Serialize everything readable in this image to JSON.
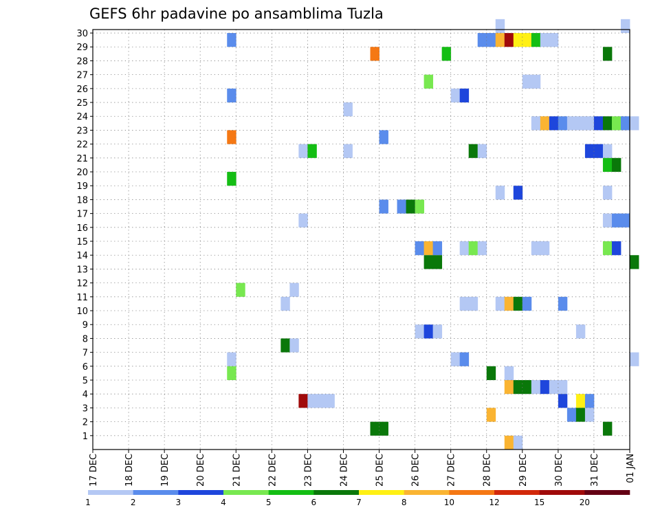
{
  "chart_data": {
    "type": "heatmap",
    "title": "GEFS 6hr padavine po ansamblima Tuzla",
    "xlabel": "",
    "ylabel": "",
    "x_tick_labels": [
      "17 DEC",
      "18 DEC",
      "19 DEC",
      "20 DEC",
      "21 DEC",
      "22 DEC",
      "23 DEC",
      "24 DEC",
      "25 DEC",
      "26 DEC",
      "27 DEC",
      "28 DEC",
      "29 DEC",
      "30 DEC",
      "31 DEC",
      "01 JAN"
    ],
    "y_tick_labels": [
      "1",
      "2",
      "3",
      "4",
      "5",
      "6",
      "7",
      "8",
      "9",
      "10",
      "11",
      "12",
      "13",
      "14",
      "15",
      "16",
      "17",
      "18",
      "19",
      "20",
      "21",
      "22",
      "23",
      "24",
      "25",
      "26",
      "27",
      "28",
      "29",
      "30"
    ],
    "xlim_days": [
      0,
      15
    ],
    "ylim_members": [
      0,
      30
    ],
    "grid": "dotted",
    "colorbar": {
      "levels": [
        "1",
        "2",
        "3",
        "4",
        "5",
        "6",
        "7",
        "8",
        "10",
        "12",
        "15",
        "20"
      ],
      "colors": [
        "#b4c8f4",
        "#5a8cec",
        "#1e46dc",
        "#78e850",
        "#14be14",
        "#0a780a",
        "#fff014",
        "#fab432",
        "#f57814",
        "#d2280a",
        "#a00a0a",
        "#640014"
      ]
    },
    "cells_note": "each cell: member (1-30 row), start_day (days after 17 DEC 00Z), class index into colorbar colors",
    "cells": [
      [
        30,
        11.25,
        0
      ],
      [
        30,
        14.75,
        0
      ],
      [
        29,
        3.75,
        1
      ],
      [
        29,
        10.75,
        1
      ],
      [
        29,
        11.0,
        1
      ],
      [
        29,
        11.25,
        7
      ],
      [
        29,
        11.5,
        10
      ],
      [
        29,
        11.75,
        6
      ],
      [
        29,
        12.0,
        6
      ],
      [
        29,
        12.25,
        4
      ],
      [
        29,
        12.5,
        0
      ],
      [
        29,
        12.75,
        0
      ],
      [
        28,
        7.75,
        8
      ],
      [
        28,
        9.75,
        4
      ],
      [
        28,
        14.25,
        5
      ],
      [
        26,
        9.25,
        3
      ],
      [
        26,
        12.0,
        0
      ],
      [
        26,
        12.25,
        0
      ],
      [
        25,
        3.75,
        1
      ],
      [
        25,
        10.0,
        0
      ],
      [
        25,
        10.25,
        2
      ],
      [
        24,
        7.0,
        0
      ],
      [
        23,
        12.25,
        0
      ],
      [
        23,
        12.5,
        7
      ],
      [
        23,
        12.75,
        2
      ],
      [
        23,
        13.0,
        1
      ],
      [
        23,
        13.25,
        0
      ],
      [
        23,
        13.5,
        0
      ],
      [
        23,
        13.75,
        0
      ],
      [
        23,
        14.0,
        2
      ],
      [
        23,
        14.25,
        5
      ],
      [
        23,
        14.5,
        3
      ],
      [
        23,
        14.75,
        1
      ],
      [
        23,
        15.0,
        0
      ],
      [
        22,
        3.75,
        8
      ],
      [
        22,
        8.0,
        1
      ],
      [
        21,
        5.75,
        0
      ],
      [
        21,
        6.0,
        4
      ],
      [
        21,
        7.0,
        0
      ],
      [
        21,
        10.5,
        5
      ],
      [
        21,
        10.75,
        0
      ],
      [
        21,
        13.75,
        2
      ],
      [
        21,
        14.0,
        2
      ],
      [
        21,
        14.25,
        0
      ],
      [
        20,
        14.25,
        4
      ],
      [
        20,
        14.5,
        5
      ],
      [
        19,
        3.75,
        4
      ],
      [
        18,
        11.25,
        0
      ],
      [
        18,
        11.75,
        2
      ],
      [
        18,
        14.25,
        0
      ],
      [
        17,
        8.0,
        1
      ],
      [
        17,
        8.5,
        1
      ],
      [
        17,
        8.75,
        5
      ],
      [
        17,
        9.0,
        3
      ],
      [
        16,
        5.75,
        0
      ],
      [
        16,
        14.25,
        0
      ],
      [
        16,
        14.5,
        1
      ],
      [
        16,
        14.75,
        1
      ],
      [
        14,
        9.0,
        1
      ],
      [
        14,
        9.25,
        7
      ],
      [
        14,
        9.5,
        1
      ],
      [
        14,
        10.25,
        0
      ],
      [
        14,
        10.5,
        3
      ],
      [
        14,
        10.75,
        0
      ],
      [
        14,
        12.25,
        0
      ],
      [
        14,
        12.5,
        0
      ],
      [
        14,
        14.25,
        3
      ],
      [
        14,
        14.5,
        2
      ],
      [
        13,
        9.25,
        5
      ],
      [
        13,
        9.5,
        5
      ],
      [
        13,
        15.0,
        5
      ],
      [
        11,
        4.0,
        3
      ],
      [
        11,
        5.5,
        0
      ],
      [
        10,
        5.25,
        0
      ],
      [
        10,
        10.25,
        0
      ],
      [
        10,
        10.5,
        0
      ],
      [
        10,
        11.25,
        0
      ],
      [
        10,
        11.5,
        7
      ],
      [
        10,
        11.75,
        5
      ],
      [
        10,
        12.0,
        1
      ],
      [
        10,
        13.0,
        1
      ],
      [
        8,
        9.0,
        0
      ],
      [
        8,
        9.25,
        2
      ],
      [
        8,
        9.5,
        0
      ],
      [
        8,
        13.5,
        0
      ],
      [
        7,
        5.25,
        5
      ],
      [
        7,
        5.5,
        0
      ],
      [
        6,
        3.75,
        0
      ],
      [
        6,
        10.0,
        0
      ],
      [
        6,
        10.25,
        1
      ],
      [
        6,
        15.0,
        0
      ],
      [
        5,
        3.75,
        3
      ],
      [
        5,
        11.0,
        5
      ],
      [
        5,
        11.5,
        0
      ],
      [
        4,
        11.5,
        7
      ],
      [
        4,
        11.75,
        5
      ],
      [
        4,
        12.0,
        5
      ],
      [
        4,
        12.25,
        0
      ],
      [
        4,
        12.5,
        2
      ],
      [
        4,
        12.75,
        0
      ],
      [
        4,
        13.0,
        0
      ],
      [
        3,
        5.75,
        10
      ],
      [
        3,
        6.0,
        0
      ],
      [
        3,
        6.25,
        0
      ],
      [
        3,
        6.5,
        0
      ],
      [
        3,
        13.0,
        2
      ],
      [
        3,
        13.5,
        6
      ],
      [
        3,
        13.75,
        1
      ],
      [
        2,
        11.0,
        7
      ],
      [
        2,
        13.25,
        1
      ],
      [
        2,
        13.5,
        5
      ],
      [
        2,
        13.75,
        0
      ],
      [
        1,
        7.75,
        5
      ],
      [
        1,
        8.0,
        5
      ],
      [
        1,
        14.25,
        5
      ],
      [
        0,
        11.5,
        7
      ],
      [
        0,
        11.75,
        0
      ]
    ]
  }
}
